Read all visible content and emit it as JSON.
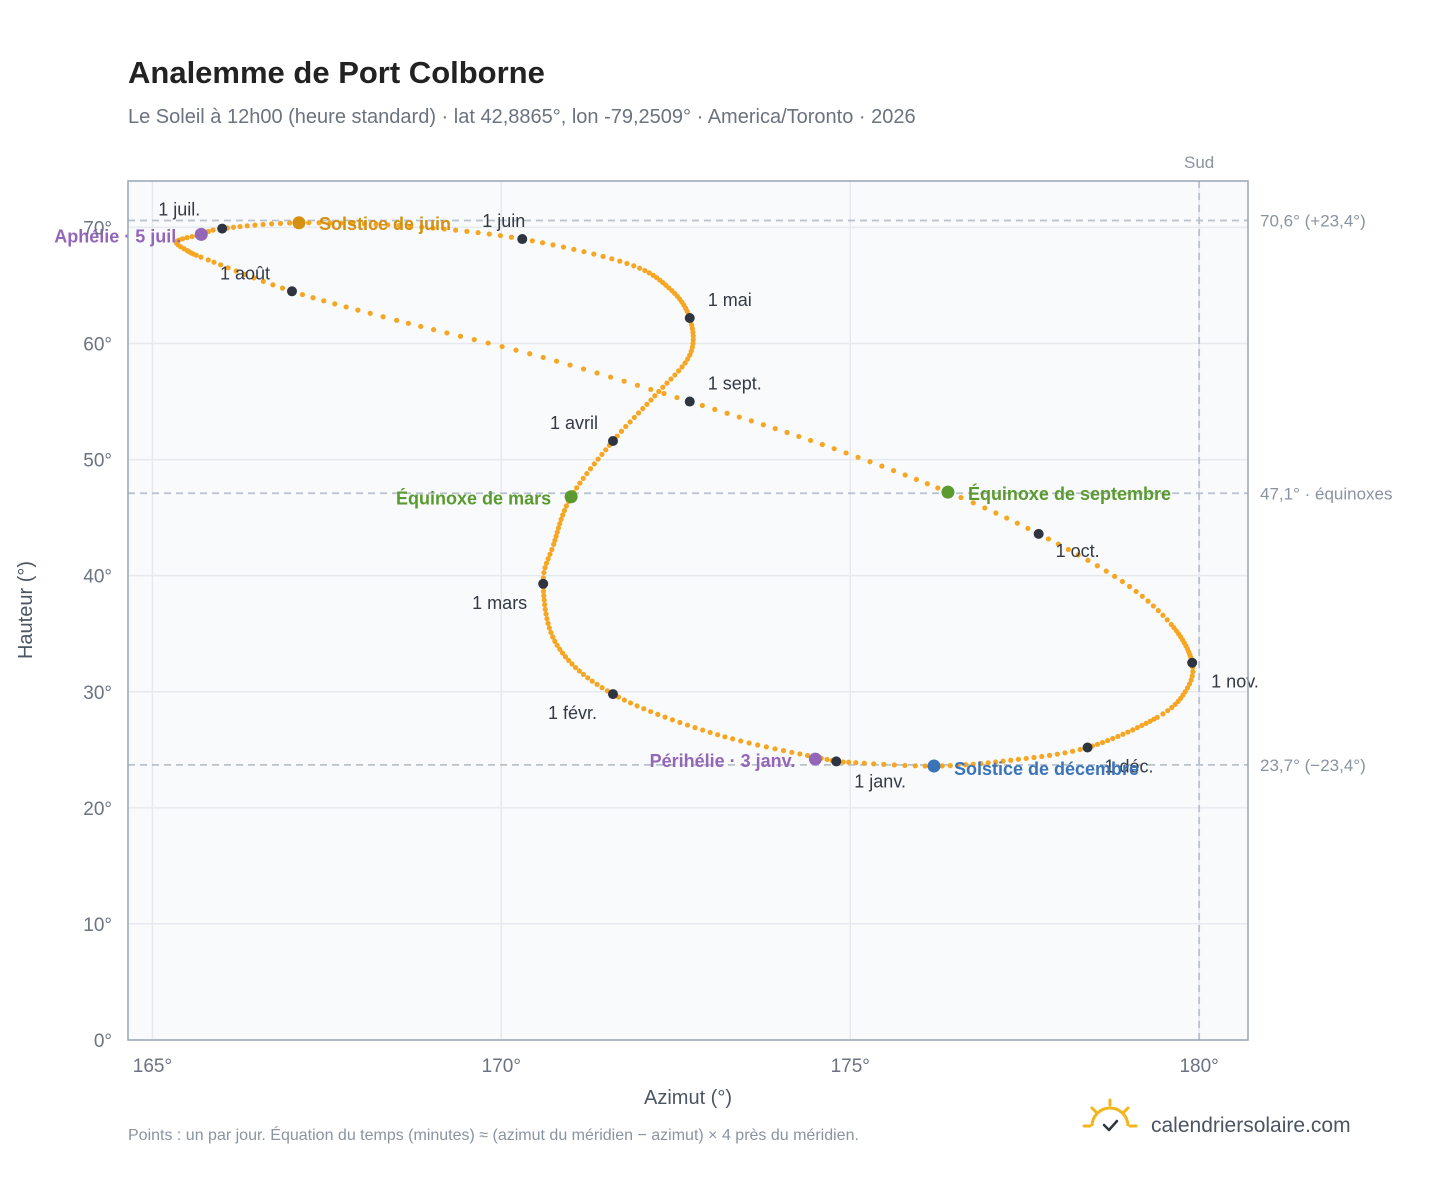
{
  "header": {
    "title": "Analemme de Port Colborne",
    "subtitle": "Le Soleil à 12h00 (heure standard) · lat 42,8865°, lon -79,2509° · America/Toronto · 2026"
  },
  "footer": {
    "note": "Points : un par jour. Équation du temps (minutes) ≈ (azimut du méridien − azimut) × 4 près du méridien.",
    "brand": "calendriersolaire.com",
    "brand_icon": "sun-check-icon"
  },
  "colors": {
    "curve": "#f5a623",
    "month_marker": "#2f3540",
    "solstice_june": "#d4900e",
    "solstice_december": "#3a73b8",
    "equinox": "#5a9a2e",
    "apsis": "#9366b8",
    "grid": "#e6e9ee",
    "reference": "#b8c1cc",
    "plot_bg": "#f8fafc",
    "frame": "#9aa4b2"
  },
  "chart_data": {
    "type": "scatter",
    "title": "Analemme de Port Colborne",
    "xlabel": "Azimut (°)",
    "ylabel": "Hauteur (°)",
    "xlim": [
      164.65,
      180.7
    ],
    "ylim": [
      0,
      74
    ],
    "x_ticks": [
      {
        "value": 165,
        "label": "165°"
      },
      {
        "value": 170,
        "label": "170°"
      },
      {
        "value": 175,
        "label": "175°"
      },
      {
        "value": 180,
        "label": "180°"
      }
    ],
    "y_ticks": [
      {
        "value": 0,
        "label": "0°"
      },
      {
        "value": 10,
        "label": "10°"
      },
      {
        "value": 20,
        "label": "20°"
      },
      {
        "value": 30,
        "label": "30°"
      },
      {
        "value": 40,
        "label": "40°"
      },
      {
        "value": 50,
        "label": "50°"
      },
      {
        "value": 60,
        "label": "60°"
      },
      {
        "value": 70,
        "label": "70°"
      }
    ],
    "grid": true,
    "points_note": "one point per day",
    "vertical_reference": {
      "x": 180,
      "label": "Sud"
    },
    "horizontal_references": [
      {
        "y": 70.6,
        "label": "70,6° (+23,4°)"
      },
      {
        "y": 47.1,
        "label": "47,1° · équinoxes"
      },
      {
        "y": 23.7,
        "label": "23,7° (−23,4°)"
      }
    ],
    "month_markers": [
      {
        "date": "1 janv.",
        "x": 174.8,
        "y": 24.0
      },
      {
        "date": "1 févr.",
        "x": 171.6,
        "y": 29.8
      },
      {
        "date": "1 mars",
        "x": 170.6,
        "y": 39.3
      },
      {
        "date": "1 avril",
        "x": 171.6,
        "y": 51.6
      },
      {
        "date": "1 mai",
        "x": 172.7,
        "y": 62.2
      },
      {
        "date": "1 juin",
        "x": 170.3,
        "y": 69.0
      },
      {
        "date": "1 juil.",
        "x": 166.0,
        "y": 69.9
      },
      {
        "date": "1 août",
        "x": 167.0,
        "y": 64.5
      },
      {
        "date": "1 sept.",
        "x": 172.7,
        "y": 55.0
      },
      {
        "date": "1 oct.",
        "x": 177.7,
        "y": 43.6
      },
      {
        "date": "1 nov.",
        "x": 179.9,
        "y": 32.5
      },
      {
        "date": "1 déc.",
        "x": 178.4,
        "y": 25.2
      }
    ],
    "events": [
      {
        "label": "Solstice de juin",
        "x": 167.1,
        "y": 70.4,
        "kind": "solstice_june"
      },
      {
        "label": "Solstice de décembre",
        "x": 176.2,
        "y": 23.6,
        "kind": "solstice_december"
      },
      {
        "label": "Équinoxe de mars",
        "x": 171.0,
        "y": 46.8,
        "kind": "equinox"
      },
      {
        "label": "Équinoxe de septembre",
        "x": 176.4,
        "y": 47.2,
        "kind": "equinox"
      },
      {
        "label": "Aphélie · 5 juil.",
        "x": 165.7,
        "y": 69.4,
        "kind": "apsis"
      },
      {
        "label": "Périhélie · 3 janv.",
        "x": 174.5,
        "y": 24.2,
        "kind": "apsis"
      }
    ],
    "curve_path": [
      {
        "day": 1,
        "x": 174.8,
        "y": 24.0
      },
      {
        "day": 17,
        "x": 173.1,
        "y": 26.3
      },
      {
        "day": 32,
        "x": 171.6,
        "y": 29.8
      },
      {
        "day": 46,
        "x": 170.8,
        "y": 34.0
      },
      {
        "day": 60,
        "x": 170.6,
        "y": 39.3
      },
      {
        "day": 68,
        "x": 170.75,
        "y": 42.7
      },
      {
        "day": 79,
        "x": 171.0,
        "y": 46.8
      },
      {
        "day": 91,
        "x": 171.6,
        "y": 51.6
      },
      {
        "day": 101,
        "x": 172.2,
        "y": 55.5
      },
      {
        "day": 111,
        "x": 172.7,
        "y": 59.0
      },
      {
        "day": 121,
        "x": 172.7,
        "y": 62.2
      },
      {
        "day": 131,
        "x": 172.4,
        "y": 64.8
      },
      {
        "day": 141,
        "x": 171.8,
        "y": 66.9
      },
      {
        "day": 152,
        "x": 170.3,
        "y": 69.0
      },
      {
        "day": 162,
        "x": 168.7,
        "y": 70.1
      },
      {
        "day": 172,
        "x": 167.1,
        "y": 70.4
      },
      {
        "day": 182,
        "x": 166.0,
        "y": 69.9
      },
      {
        "day": 186,
        "x": 165.7,
        "y": 69.4
      },
      {
        "day": 192,
        "x": 165.35,
        "y": 68.8
      },
      {
        "day": 197,
        "x": 165.5,
        "y": 68.0
      },
      {
        "day": 203,
        "x": 165.8,
        "y": 67.2
      },
      {
        "day": 213,
        "x": 167.0,
        "y": 64.5
      },
      {
        "day": 222,
        "x": 168.5,
        "y": 62.0
      },
      {
        "day": 233,
        "x": 170.6,
        "y": 58.8
      },
      {
        "day": 244,
        "x": 172.7,
        "y": 55.0
      },
      {
        "day": 255,
        "x": 174.6,
        "y": 51.3
      },
      {
        "day": 266,
        "x": 176.4,
        "y": 47.2
      },
      {
        "day": 274,
        "x": 177.7,
        "y": 43.6
      },
      {
        "day": 283,
        "x": 178.9,
        "y": 39.5
      },
      {
        "day": 292,
        "x": 179.6,
        "y": 35.8
      },
      {
        "day": 305,
        "x": 179.9,
        "y": 32.5
      },
      {
        "day": 312,
        "x": 179.8,
        "y": 30.0
      },
      {
        "day": 320,
        "x": 179.4,
        "y": 27.8
      },
      {
        "day": 335,
        "x": 178.4,
        "y": 25.2
      },
      {
        "day": 345,
        "x": 177.3,
        "y": 24.1
      },
      {
        "day": 355,
        "x": 176.2,
        "y": 23.6
      },
      {
        "day": 365,
        "x": 174.9,
        "y": 23.95
      }
    ]
  }
}
